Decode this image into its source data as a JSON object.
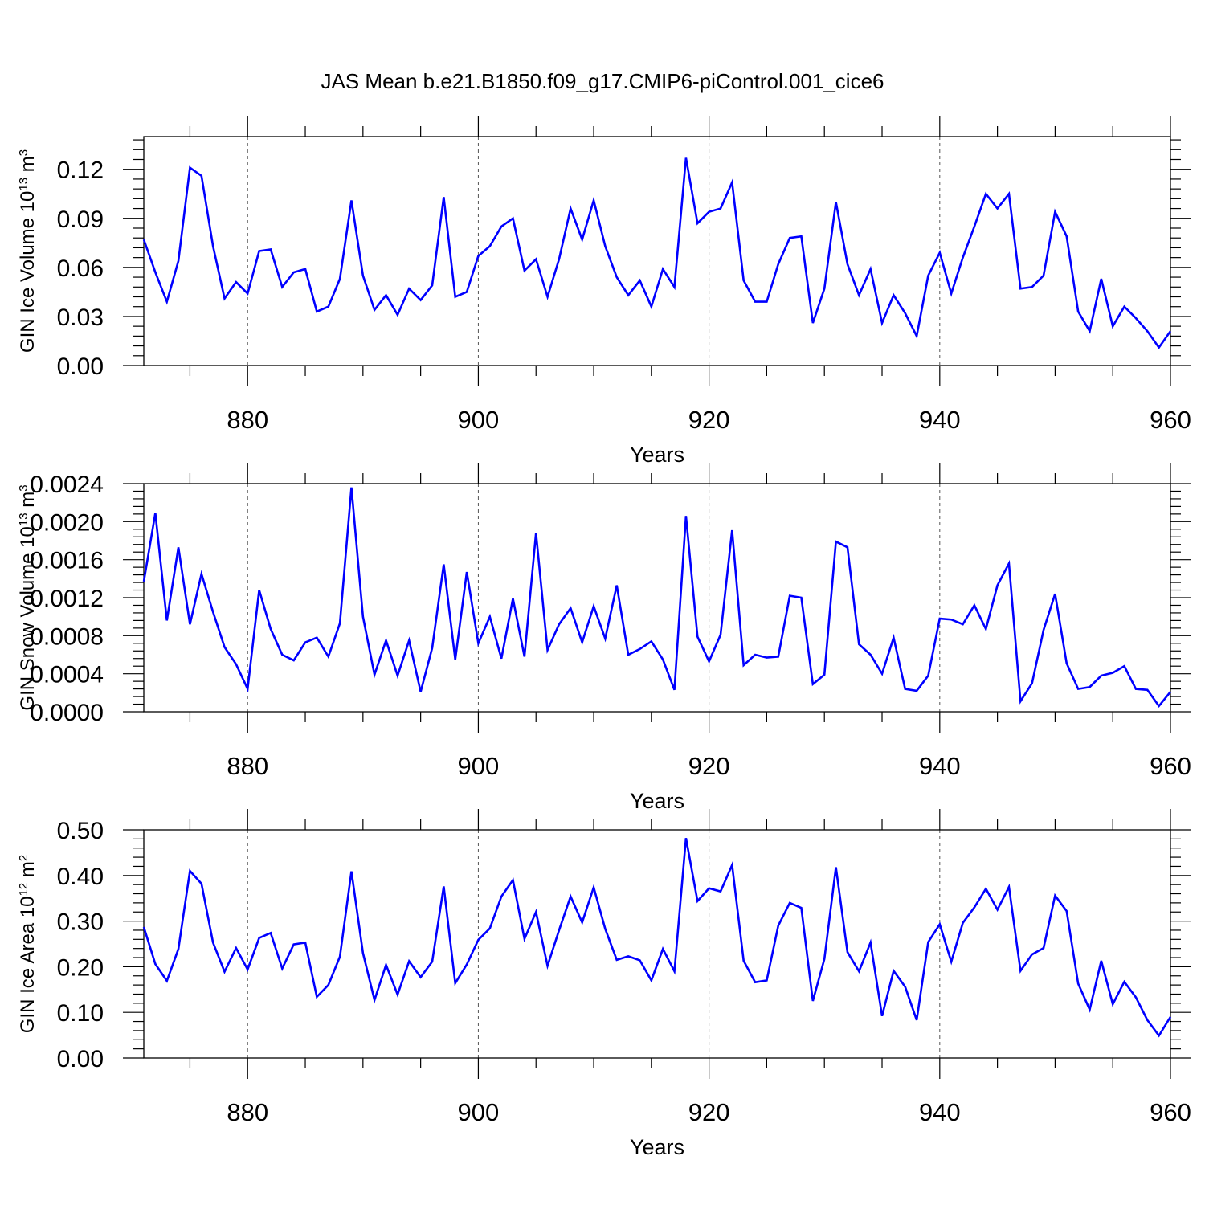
{
  "title": "JAS Mean b.e21.B1850.f09_g17.CMIP6-piControl.001_cice6",
  "line_color": "#0000ff",
  "years": [
    871,
    872,
    873,
    874,
    875,
    876,
    877,
    878,
    879,
    880,
    881,
    882,
    883,
    884,
    885,
    886,
    887,
    888,
    889,
    890,
    891,
    892,
    893,
    894,
    895,
    896,
    897,
    898,
    899,
    900,
    901,
    902,
    903,
    904,
    905,
    906,
    907,
    908,
    909,
    910,
    911,
    912,
    913,
    914,
    915,
    916,
    917,
    918,
    919,
    920,
    921,
    922,
    923,
    924,
    925,
    926,
    927,
    928,
    929,
    930,
    931,
    932,
    933,
    934,
    935,
    936,
    937,
    938,
    939,
    940,
    941,
    942,
    943,
    944,
    945,
    946,
    947,
    948,
    949,
    950,
    951,
    952,
    953,
    954,
    955,
    956,
    957,
    958,
    959,
    960
  ],
  "chart_data": [
    {
      "type": "line",
      "series_name": "GIN Ice Volume",
      "ylabel_main": "GIN Ice Volume 10",
      "ylabel_exp": "13",
      "ylabel_unit": " m",
      "ylabel_unit_exp": "3",
      "xlabel": "Years",
      "xlim": [
        871,
        960
      ],
      "ylim": [
        0,
        0.14
      ],
      "x_ticks": [
        "880",
        "900",
        "920",
        "940",
        "960"
      ],
      "y_ticks": [
        "0.00",
        "0.03",
        "0.06",
        "0.09",
        "0.12"
      ],
      "values": [
        0.077,
        0.057,
        0.039,
        0.064,
        0.121,
        0.116,
        0.073,
        0.041,
        0.051,
        0.044,
        0.07,
        0.071,
        0.048,
        0.057,
        0.059,
        0.033,
        0.036,
        0.053,
        0.101,
        0.055,
        0.034,
        0.043,
        0.031,
        0.047,
        0.04,
        0.049,
        0.103,
        0.042,
        0.045,
        0.067,
        0.073,
        0.085,
        0.09,
        0.058,
        0.065,
        0.042,
        0.065,
        0.096,
        0.077,
        0.101,
        0.073,
        0.054,
        0.043,
        0.052,
        0.036,
        0.059,
        0.048,
        0.127,
        0.087,
        0.094,
        0.096,
        0.112,
        0.052,
        0.039,
        0.039,
        0.062,
        0.078,
        0.079,
        0.026,
        0.047,
        0.1,
        0.062,
        0.043,
        0.059,
        0.026,
        0.043,
        0.032,
        0.018,
        0.055,
        0.069,
        0.044,
        0.066,
        0.085,
        0.105,
        0.096,
        0.105,
        0.047,
        0.048,
        0.055,
        0.094,
        0.079,
        0.033,
        0.021,
        0.053,
        0.024,
        0.036,
        0.029,
        0.021,
        0.011,
        0.021
      ]
    },
    {
      "type": "line",
      "series_name": "GIN Snow Volume",
      "ylabel_main": "GIN Snow Volume 10",
      "ylabel_exp": "13",
      "ylabel_unit": " m",
      "ylabel_unit_exp": "3",
      "xlabel": "Years",
      "xlim": [
        871,
        960
      ],
      "ylim": [
        0,
        0.0024
      ],
      "x_ticks": [
        "880",
        "900",
        "920",
        "940",
        "960"
      ],
      "y_ticks": [
        "0.0000",
        "0.0004",
        "0.0008",
        "0.0012",
        "0.0016",
        "0.0020",
        "0.0024"
      ],
      "values": [
        0.00137,
        0.00209,
        0.00096,
        0.00173,
        0.00092,
        0.00145,
        0.00105,
        0.00068,
        0.0005,
        0.00024,
        0.00128,
        0.00087,
        0.0006,
        0.00054,
        0.00073,
        0.00078,
        0.00058,
        0.00093,
        0.00236,
        0.001,
        0.00039,
        0.00075,
        0.00038,
        0.00075,
        0.00021,
        0.00067,
        0.00155,
        0.00055,
        0.00147,
        0.00072,
        0.001,
        0.00056,
        0.00119,
        0.00058,
        0.00188,
        0.00065,
        0.00092,
        0.00109,
        0.00073,
        0.00111,
        0.00077,
        0.00133,
        0.0006,
        0.00066,
        0.00074,
        0.00055,
        0.00023,
        0.00206,
        0.00079,
        0.00053,
        0.00081,
        0.00191,
        0.00049,
        0.0006,
        0.00057,
        0.00058,
        0.00122,
        0.0012,
        0.00029,
        0.00039,
        0.00179,
        0.00173,
        0.00071,
        0.0006,
        0.0004,
        0.00078,
        0.00024,
        0.00022,
        0.00038,
        0.00098,
        0.00097,
        0.00092,
        0.00112,
        0.00087,
        0.00133,
        0.00156,
        0.00011,
        0.0003,
        0.00086,
        0.00124,
        0.00051,
        0.00024,
        0.00026,
        0.00038,
        0.00041,
        0.00048,
        0.00024,
        0.00023,
        6e-05,
        0.00021
      ]
    },
    {
      "type": "line",
      "series_name": "GIN Ice Area",
      "ylabel_main": "GIN Ice Area 10",
      "ylabel_exp": "12",
      "ylabel_unit": " m",
      "ylabel_unit_exp": "2",
      "xlabel": "Years",
      "xlim": [
        871,
        960
      ],
      "ylim": [
        0,
        0.5
      ],
      "x_ticks": [
        "880",
        "900",
        "920",
        "940",
        "960"
      ],
      "y_ticks": [
        "0.00",
        "0.10",
        "0.20",
        "0.30",
        "0.40",
        "0.50"
      ],
      "values": [
        0.287,
        0.206,
        0.169,
        0.239,
        0.41,
        0.382,
        0.253,
        0.189,
        0.241,
        0.194,
        0.263,
        0.274,
        0.196,
        0.249,
        0.253,
        0.134,
        0.16,
        0.222,
        0.409,
        0.23,
        0.127,
        0.204,
        0.139,
        0.212,
        0.177,
        0.211,
        0.376,
        0.164,
        0.205,
        0.259,
        0.284,
        0.354,
        0.39,
        0.261,
        0.32,
        0.202,
        0.28,
        0.354,
        0.297,
        0.374,
        0.283,
        0.215,
        0.223,
        0.214,
        0.17,
        0.239,
        0.19,
        0.482,
        0.344,
        0.372,
        0.365,
        0.423,
        0.213,
        0.166,
        0.17,
        0.29,
        0.34,
        0.329,
        0.125,
        0.217,
        0.418,
        0.232,
        0.19,
        0.253,
        0.092,
        0.191,
        0.156,
        0.083,
        0.254,
        0.293,
        0.211,
        0.296,
        0.33,
        0.371,
        0.325,
        0.375,
        0.191,
        0.227,
        0.241,
        0.356,
        0.322,
        0.163,
        0.106,
        0.213,
        0.118,
        0.167,
        0.133,
        0.083,
        0.049,
        0.09
      ]
    }
  ]
}
